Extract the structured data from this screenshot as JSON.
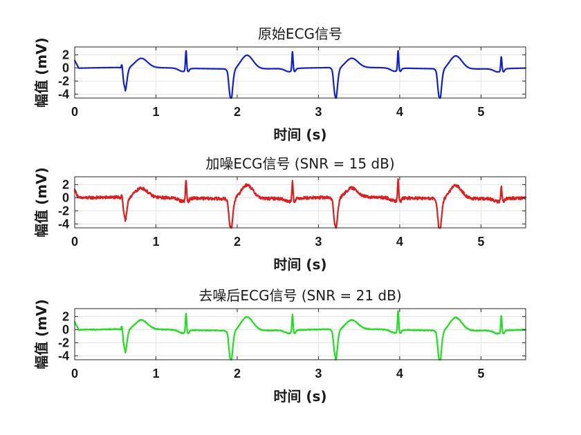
{
  "chart_data": [
    {
      "type": "line",
      "title": "原始ECG信号",
      "xlabel": "时间 (s)",
      "ylabel": "幅值 (mV)",
      "xlim": [
        0,
        5.55
      ],
      "ylim": [
        -4.6,
        3.2
      ],
      "xticks": [
        0,
        1,
        2,
        3,
        4,
        5
      ],
      "yticks": [
        2,
        0,
        -2,
        -4
      ],
      "grid": true,
      "color": "#0d1ed6",
      "noise": 0.0,
      "series": [
        {
          "beats": [
            {
              "t": 0.6,
              "r": 1.0,
              "s": -3.1,
              "tw": 1.4,
              "tt": 0.22
            },
            {
              "t": 1.37,
              "r": 3.1,
              "s": -0.3,
              "tw": 0.0,
              "tt": 0.0
            },
            {
              "t": 1.9,
              "r": 0.3,
              "s": -4.5,
              "tw": 2.1,
              "tt": 0.22
            },
            {
              "t": 2.68,
              "r": 2.9,
              "s": -0.3,
              "tw": 0.0,
              "tt": 0.0
            },
            {
              "t": 3.19,
              "r": 0.3,
              "s": -4.5,
              "tw": 1.4,
              "tt": 0.22
            },
            {
              "t": 3.98,
              "r": 3.0,
              "s": -0.3,
              "tw": 0.0,
              "tt": 0.0
            },
            {
              "t": 4.47,
              "r": 0.3,
              "s": -4.5,
              "tw": 2.0,
              "tt": 0.22
            },
            {
              "t": 5.25,
              "r": 2.2,
              "s": -0.3,
              "tw": 0.0,
              "tt": 0.0
            }
          ],
          "start": {
            "t": 0.0,
            "v": 1.2
          }
        }
      ]
    },
    {
      "type": "line",
      "title": "加噪ECG信号 (SNR = 15 dB)",
      "xlabel": "时间 (s)",
      "ylabel": "幅值 (mV)",
      "xlim": [
        0,
        5.55
      ],
      "ylim": [
        -4.6,
        3.2
      ],
      "xticks": [
        0,
        1,
        2,
        3,
        4,
        5
      ],
      "yticks": [
        2,
        0,
        -2,
        -4
      ],
      "grid": true,
      "color": "#e01c1c",
      "noise": 0.22,
      "series": [
        {
          "beats": [
            {
              "t": 0.6,
              "r": 1.0,
              "s": -3.1,
              "tw": 1.4,
              "tt": 0.22
            },
            {
              "t": 1.37,
              "r": 3.1,
              "s": -0.3,
              "tw": 0.0,
              "tt": 0.0
            },
            {
              "t": 1.9,
              "r": 0.3,
              "s": -4.5,
              "tw": 2.1,
              "tt": 0.22
            },
            {
              "t": 2.68,
              "r": 2.9,
              "s": -0.3,
              "tw": 0.0,
              "tt": 0.0
            },
            {
              "t": 3.19,
              "r": 0.3,
              "s": -4.5,
              "tw": 1.4,
              "tt": 0.22
            },
            {
              "t": 3.98,
              "r": 3.3,
              "s": -0.3,
              "tw": 0.0,
              "tt": 0.0
            },
            {
              "t": 4.47,
              "r": 0.3,
              "s": -4.8,
              "tw": 2.0,
              "tt": 0.22
            },
            {
              "t": 5.25,
              "r": 2.2,
              "s": -0.3,
              "tw": 0.0,
              "tt": 0.0
            }
          ],
          "start": {
            "t": 0.0,
            "v": 1.2
          }
        }
      ]
    },
    {
      "type": "line",
      "title": "去噪后ECG信号 (SNR = 21 dB)",
      "xlabel": "时间 (s)",
      "ylabel": "幅值 (mV)",
      "xlim": [
        0,
        5.55
      ],
      "ylim": [
        -4.6,
        3.2
      ],
      "xticks": [
        0,
        1,
        2,
        3,
        4,
        5
      ],
      "yticks": [
        2,
        0,
        -2,
        -4
      ],
      "grid": true,
      "color": "#1fe01f",
      "noise": 0.06,
      "series": [
        {
          "beats": [
            {
              "t": 0.6,
              "r": 1.0,
              "s": -3.1,
              "tw": 1.4,
              "tt": 0.22
            },
            {
              "t": 1.37,
              "r": 2.9,
              "s": -0.3,
              "tw": 0.0,
              "tt": 0.0
            },
            {
              "t": 1.9,
              "r": 0.3,
              "s": -4.5,
              "tw": 2.1,
              "tt": 0.22
            },
            {
              "t": 2.68,
              "r": 2.7,
              "s": -0.3,
              "tw": 0.0,
              "tt": 0.0
            },
            {
              "t": 3.19,
              "r": 0.3,
              "s": -4.3,
              "tw": 1.4,
              "tt": 0.22
            },
            {
              "t": 3.98,
              "r": 3.3,
              "s": -0.3,
              "tw": 0.0,
              "tt": 0.0
            },
            {
              "t": 4.47,
              "r": 0.3,
              "s": -4.6,
              "tw": 2.0,
              "tt": 0.22
            },
            {
              "t": 5.25,
              "r": 2.6,
              "s": -0.3,
              "tw": 0.0,
              "tt": 0.0
            }
          ],
          "start": {
            "t": 0.0,
            "v": 1.2
          }
        }
      ]
    }
  ]
}
